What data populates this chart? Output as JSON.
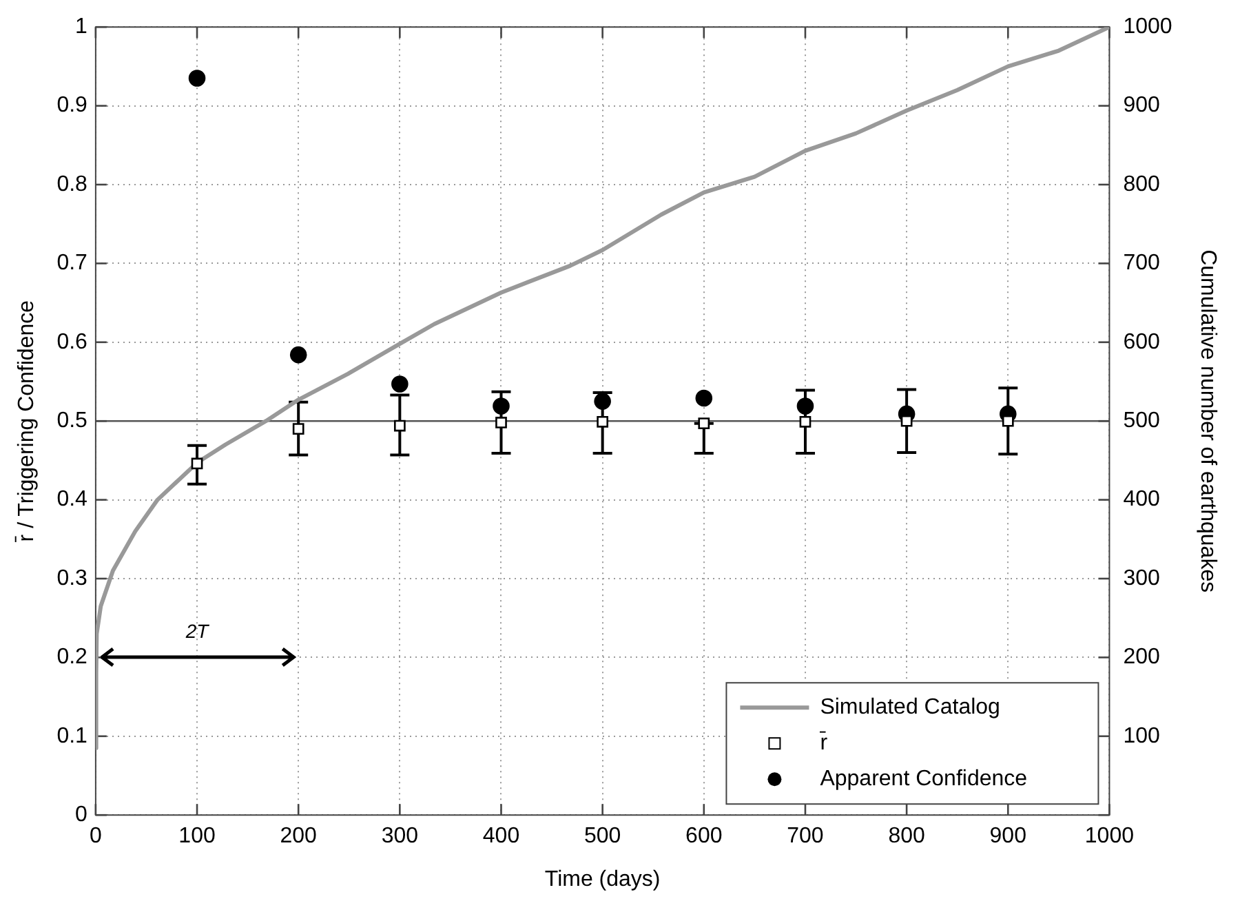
{
  "chart_data": {
    "type": "scatter",
    "xlabel": "Time (days)",
    "ylabel": "r̄ / Triggering Confidence",
    "y2label": "Cumulative number of earthquakes",
    "xlim": [
      0,
      1000
    ],
    "xticks": [
      0,
      100,
      200,
      300,
      400,
      500,
      600,
      700,
      800,
      900,
      1000
    ],
    "ylim": [
      0,
      1
    ],
    "yticks": [
      0,
      0.1,
      0.2,
      0.3,
      0.4,
      0.5,
      0.6,
      0.7,
      0.8,
      0.9,
      1
    ],
    "y2lim": [
      0,
      1000
    ],
    "y2ticks": [
      {
        "value": 0,
        "label": null
      },
      100,
      200,
      300,
      400,
      500,
      600,
      700,
      800,
      900,
      1000
    ],
    "grid": true,
    "legend": "bottom right",
    "ref_lines": [
      {
        "axis": "y",
        "value": 0.5,
        "label": null,
        "color": "#555555",
        "line_style": "solid"
      }
    ],
    "annotations": [
      "2T"
    ],
    "series": [
      {
        "name": "Simulated Catalog",
        "type": "line",
        "axis": "y2",
        "color": "#999999",
        "marker": "none",
        "line_style": "solid",
        "x": [
          0,
          0.5,
          1,
          5,
          17,
          39,
          61,
          100,
          128,
          168,
          200,
          249,
          300,
          334,
          400,
          468,
          500,
          558,
          600,
          650,
          700,
          750,
          800,
          850,
          900,
          950,
          1000
        ],
        "values": [
          85,
          180,
          230,
          265,
          310,
          360,
          400,
          447,
          470,
          500,
          527,
          560,
          598,
          623,
          663,
          697,
          717,
          762,
          790,
          810,
          843,
          865,
          894,
          920,
          950,
          970,
          1000
        ]
      },
      {
        "name": "r̄",
        "color": "#000000",
        "marker": "square",
        "x": [
          100,
          200,
          300,
          400,
          500,
          600,
          700,
          800,
          900
        ],
        "values": [
          0.446,
          0.49,
          0.494,
          0.498,
          0.499,
          0.497,
          0.499,
          0.5,
          0.5
        ],
        "errors": [
          [
            0.42,
            0.469
          ],
          [
            0.457,
            0.524
          ],
          [
            0.457,
            0.533
          ],
          [
            0.459,
            0.537
          ],
          [
            0.459,
            0.536
          ],
          [
            0.459,
            0.497
          ],
          [
            0.459,
            0.539
          ],
          [
            0.46,
            0.54
          ],
          [
            0.458,
            0.542
          ]
        ]
      },
      {
        "name": "Apparent Confidence",
        "color": "#000000",
        "marker": "circle",
        "x": [
          100,
          200,
          300,
          400,
          500,
          600,
          700,
          800,
          900
        ],
        "values": [
          0.935,
          0.584,
          0.547,
          0.519,
          0.525,
          0.529,
          0.519,
          0.509,
          0.509
        ]
      }
    ]
  }
}
